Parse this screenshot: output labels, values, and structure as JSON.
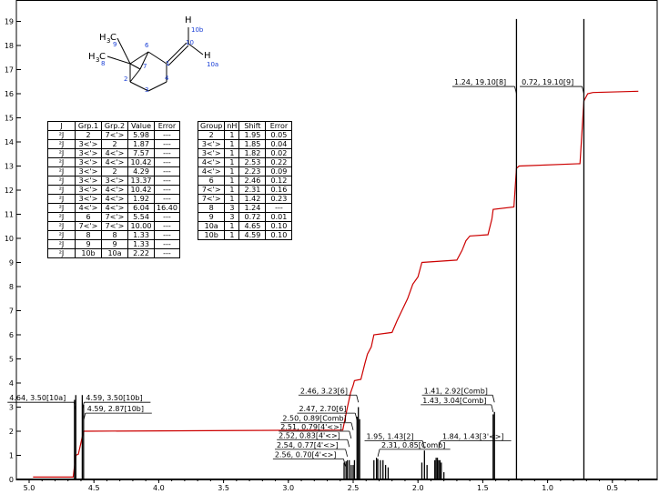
{
  "chart_data": {
    "type": "nmr-spectrum",
    "x_axis": {
      "min": 0.3,
      "max": 5.0,
      "reversed": true,
      "ticks": [
        5.0,
        4.5,
        4.0,
        3.5,
        3.0,
        2.5,
        2.0,
        1.5,
        1.0,
        0.5
      ]
    },
    "y_axis": {
      "min": 0,
      "max": 19.5,
      "ticks": [
        0,
        1,
        2,
        3,
        4,
        5,
        6,
        7,
        8,
        9,
        10,
        11,
        12,
        13,
        14,
        15,
        16,
        17,
        18,
        19
      ]
    },
    "peaks": [
      {
        "x": 4.65,
        "h": 3.3
      },
      {
        "x": 4.64,
        "h": 3.5
      },
      {
        "x": 4.59,
        "h": 3.5
      },
      {
        "x": 4.58,
        "h": 3.1
      },
      {
        "x": 2.57,
        "h": 0.7
      },
      {
        "x": 2.555,
        "h": 0.75
      },
      {
        "x": 2.545,
        "h": 0.8
      },
      {
        "x": 2.53,
        "h": 0.8
      },
      {
        "x": 2.515,
        "h": 0.6
      },
      {
        "x": 2.5,
        "h": 0.6
      },
      {
        "x": 2.49,
        "h": 0.8
      },
      {
        "x": 2.47,
        "h": 2.6
      },
      {
        "x": 2.46,
        "h": 3.0
      },
      {
        "x": 2.45,
        "h": 2.5
      },
      {
        "x": 2.34,
        "h": 0.8
      },
      {
        "x": 2.32,
        "h": 0.9
      },
      {
        "x": 2.31,
        "h": 0.85
      },
      {
        "x": 2.29,
        "h": 0.8
      },
      {
        "x": 2.27,
        "h": 0.8
      },
      {
        "x": 2.25,
        "h": 0.6
      },
      {
        "x": 2.23,
        "h": 0.5
      },
      {
        "x": 1.97,
        "h": 0.7
      },
      {
        "x": 1.95,
        "h": 1.2
      },
      {
        "x": 1.93,
        "h": 0.6
      },
      {
        "x": 1.87,
        "h": 0.8
      },
      {
        "x": 1.86,
        "h": 0.9
      },
      {
        "x": 1.85,
        "h": 0.9
      },
      {
        "x": 1.84,
        "h": 0.8
      },
      {
        "x": 1.83,
        "h": 0.8
      },
      {
        "x": 1.82,
        "h": 0.7
      },
      {
        "x": 1.8,
        "h": 0.3
      },
      {
        "x": 1.42,
        "h": 2.7
      },
      {
        "x": 1.41,
        "h": 2.8
      },
      {
        "x": 1.24,
        "h": 19.1
      },
      {
        "x": 0.72,
        "h": 19.1
      }
    ],
    "integral": [
      [
        4.97,
        0.1
      ],
      [
        4.66,
        0.1
      ],
      [
        4.64,
        1.0
      ],
      [
        4.62,
        1.05
      ],
      [
        4.58,
        2.0
      ],
      [
        2.58,
        2.05
      ],
      [
        2.56,
        2.6
      ],
      [
        2.54,
        3.1
      ],
      [
        2.52,
        3.6
      ],
      [
        2.5,
        3.9
      ],
      [
        2.49,
        4.1
      ],
      [
        2.44,
        4.15
      ],
      [
        2.41,
        4.8
      ],
      [
        2.39,
        5.2
      ],
      [
        2.36,
        5.5
      ],
      [
        2.34,
        6.0
      ],
      [
        2.2,
        6.1
      ],
      [
        2.16,
        6.6
      ],
      [
        2.08,
        7.5
      ],
      [
        2.04,
        8.1
      ],
      [
        2.0,
        8.4
      ],
      [
        1.97,
        9.0
      ],
      [
        1.7,
        9.1
      ],
      [
        1.66,
        9.5
      ],
      [
        1.63,
        9.9
      ],
      [
        1.6,
        10.1
      ],
      [
        1.46,
        10.15
      ],
      [
        1.43,
        10.8
      ],
      [
        1.42,
        11.2
      ],
      [
        1.26,
        11.3
      ],
      [
        1.24,
        12.9
      ],
      [
        1.22,
        13.0
      ],
      [
        0.75,
        13.1
      ],
      [
        0.72,
        15.7
      ],
      [
        0.69,
        16.0
      ],
      [
        0.65,
        16.05
      ],
      [
        0.3,
        16.1
      ]
    ],
    "annotations": [
      {
        "text": "4.64, 3.50[10a]",
        "peak": 4.64,
        "label_y": 3.2,
        "side": "left"
      },
      {
        "text": "4.59, 3.50[10b]",
        "peak": 4.59,
        "label_y": 3.2,
        "side": "right"
      },
      {
        "text": "4.59, 2.87[10b]",
        "peak": 4.58,
        "label_y": 2.75,
        "side": "right"
      },
      {
        "text": "2.46, 3.23[6]",
        "peak": 2.46,
        "label_y": 3.5,
        "side": "left"
      },
      {
        "text": "2.47, 2.70[6]",
        "peak": 2.47,
        "label_y": 2.75,
        "side": "left"
      },
      {
        "text": "2.50, 0.89[Comb]",
        "peak": 2.5,
        "label_y": 2.35,
        "side": "left"
      },
      {
        "text": "2.51, 0.79[4'<>]",
        "peak": 2.515,
        "label_y": 2.0,
        "side": "left"
      },
      {
        "text": "2.52, 0.83[4'<>]",
        "peak": 2.53,
        "label_y": 1.65,
        "side": "left"
      },
      {
        "text": "2.54, 0.77[4'<>]",
        "peak": 2.545,
        "label_y": 1.25,
        "side": "left"
      },
      {
        "text": "2.56, 0.70[4'<>]",
        "peak": 2.56,
        "label_y": 0.85,
        "side": "left"
      },
      {
        "text": "1.95, 1.43[2]",
        "peak": 1.95,
        "label_y": 1.6,
        "side": "left"
      },
      {
        "text": "2.31, 0.85[Comb]",
        "peak": 2.31,
        "label_y": 1.25,
        "side": "right"
      },
      {
        "text": "1.84, 1.43[3'<>]",
        "peak": 1.84,
        "label_y": 1.6,
        "side": "right"
      },
      {
        "text": "1.41, 2.92[Comb]",
        "peak": 1.41,
        "label_y": 3.5,
        "side": "left"
      },
      {
        "text": "1.43, 3.04[Comb]",
        "peak": 1.42,
        "label_y": 3.1,
        "side": "left"
      },
      {
        "text": "1.24, 19.10[8]",
        "peak": 1.24,
        "label_y": 16.3,
        "side": "left"
      },
      {
        "text": "0.72, 19.10[9]",
        "peak": 0.72,
        "label_y": 16.3,
        "side": "left"
      }
    ]
  },
  "molecule": {
    "atoms": [
      {
        "label": "H",
        "sub": "3",
        "id": "C",
        "num": "9"
      },
      {
        "label": "H",
        "sub": "3",
        "id": "C",
        "num": "8"
      },
      {
        "label": "H",
        "num": "10b"
      },
      {
        "label": "H",
        "num": "10a"
      },
      {
        "num": "6"
      },
      {
        "num": "10"
      },
      {
        "num": "7"
      },
      {
        "num": "2"
      },
      {
        "num": "4"
      },
      {
        "num": "3"
      },
      {
        "num": "1"
      }
    ]
  },
  "j_table": {
    "headers": [
      "J",
      "Grp.1",
      "Grp.2",
      "Value",
      "Error"
    ],
    "rows": [
      [
        "²J",
        "2",
        "7<'>",
        "5.98",
        "---"
      ],
      [
        "²J",
        "3<'>",
        "2",
        "1.87",
        "---"
      ],
      [
        "²J",
        "3<'>",
        "4<'>",
        "7.57",
        "---"
      ],
      [
        "²J",
        "3<'>",
        "4<'>",
        "10.42",
        "---"
      ],
      [
        "²J",
        "3<'>",
        "2",
        "4.29",
        "---"
      ],
      [
        "²J",
        "3<'>",
        "3<'>",
        "13.37",
        "---"
      ],
      [
        "²J",
        "3<'>",
        "4<'>",
        "10.42",
        "---"
      ],
      [
        "²J",
        "3<'>",
        "4<'>",
        "1.92",
        "---"
      ],
      [
        "²J",
        "4<'>",
        "4<'>",
        "6.04",
        "16.40"
      ],
      [
        "²J",
        "6",
        "7<'>",
        "5.54",
        "---"
      ],
      [
        "²J",
        "7<'>",
        "7<'>",
        "10.00",
        "---"
      ],
      [
        "²J",
        "8",
        "8",
        "1.33",
        "---"
      ],
      [
        "²J",
        "9",
        "9",
        "1.33",
        "---"
      ],
      [
        "²J",
        "10b",
        "10a",
        "2.22",
        "---"
      ]
    ]
  },
  "shift_table": {
    "headers": [
      "Group",
      "nH",
      "Shift",
      "Error"
    ],
    "rows": [
      [
        "2",
        "1",
        "1.95",
        "0.05"
      ],
      [
        "3<'>",
        "1",
        "1.85",
        "0.04"
      ],
      [
        "3<'>",
        "1",
        "1.82",
        "0.02"
      ],
      [
        "4<'>",
        "1",
        "2.53",
        "0.22"
      ],
      [
        "4<'>",
        "1",
        "2.23",
        "0.09"
      ],
      [
        "6",
        "1",
        "2.46",
        "0.12"
      ],
      [
        "7<'>",
        "1",
        "2.31",
        "0.16"
      ],
      [
        "7<'>",
        "1",
        "1.42",
        "0.23"
      ],
      [
        "8",
        "3",
        "1.24",
        "---"
      ],
      [
        "9",
        "3",
        "0.72",
        "0.01"
      ],
      [
        "10a",
        "1",
        "4.65",
        "0.10"
      ],
      [
        "10b",
        "1",
        "4.59",
        "0.10"
      ]
    ]
  },
  "colors": {
    "spectrum": "#000000",
    "integral": "#cc0000",
    "atom_number": "#1a3fd6"
  }
}
